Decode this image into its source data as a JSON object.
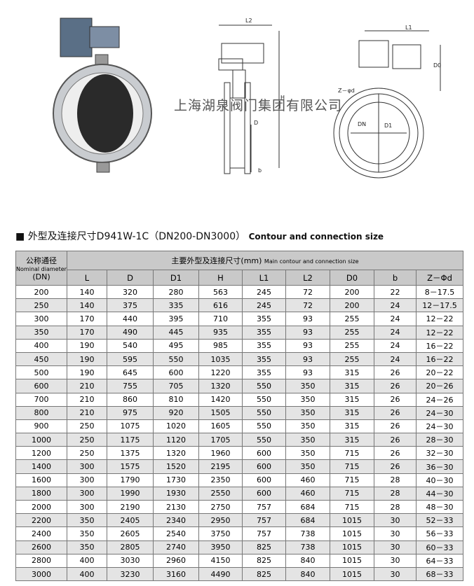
{
  "watermark": "上海湖泉阀门集团有限公司",
  "drawings": {
    "side": {
      "labels": [
        "L2",
        "H",
        "D",
        "b"
      ]
    },
    "front": {
      "labels": [
        "L1",
        "D0",
        "Z－φd",
        "DN",
        "D1"
      ]
    }
  },
  "section": {
    "title": "外型及连接尺寸D941W-1C（DN200-DN3000）",
    "title_en": "Contour and connection size"
  },
  "table": {
    "corner": [
      "公称通径",
      "Nominal diameter",
      "(DN)"
    ],
    "group_header": "主要外型及连接尺寸(mm)",
    "group_header_en": "Main contour and connection size",
    "columns": [
      "L",
      "D",
      "D1",
      "H",
      "L1",
      "L2",
      "D0",
      "b",
      "Z－Φd"
    ],
    "rows": [
      [
        "200",
        "140",
        "320",
        "280",
        "563",
        "245",
        "72",
        "200",
        "22",
        "8－17.5"
      ],
      [
        "250",
        "140",
        "375",
        "335",
        "616",
        "245",
        "72",
        "200",
        "24",
        "12－17.5"
      ],
      [
        "300",
        "170",
        "440",
        "395",
        "710",
        "355",
        "93",
        "255",
        "24",
        "12－22"
      ],
      [
        "350",
        "170",
        "490",
        "445",
        "935",
        "355",
        "93",
        "255",
        "24",
        "12－22"
      ],
      [
        "400",
        "190",
        "540",
        "495",
        "985",
        "355",
        "93",
        "255",
        "24",
        "16－22"
      ],
      [
        "450",
        "190",
        "595",
        "550",
        "1035",
        "355",
        "93",
        "255",
        "24",
        "16－22"
      ],
      [
        "500",
        "190",
        "645",
        "600",
        "1220",
        "355",
        "93",
        "315",
        "26",
        "20－22"
      ],
      [
        "600",
        "210",
        "755",
        "705",
        "1320",
        "550",
        "350",
        "315",
        "26",
        "20－26"
      ],
      [
        "700",
        "210",
        "860",
        "810",
        "1420",
        "550",
        "350",
        "315",
        "26",
        "24－26"
      ],
      [
        "800",
        "210",
        "975",
        "920",
        "1505",
        "550",
        "350",
        "315",
        "26",
        "24－30"
      ],
      [
        "900",
        "250",
        "1075",
        "1020",
        "1605",
        "550",
        "350",
        "315",
        "26",
        "24－30"
      ],
      [
        "1000",
        "250",
        "1175",
        "1120",
        "1705",
        "550",
        "350",
        "315",
        "26",
        "28－30"
      ],
      [
        "1200",
        "250",
        "1375",
        "1320",
        "1960",
        "600",
        "350",
        "715",
        "26",
        "32－30"
      ],
      [
        "1400",
        "300",
        "1575",
        "1520",
        "2195",
        "600",
        "350",
        "715",
        "26",
        "36－30"
      ],
      [
        "1600",
        "300",
        "1790",
        "1730",
        "2350",
        "600",
        "460",
        "715",
        "28",
        "40－30"
      ],
      [
        "1800",
        "300",
        "1990",
        "1930",
        "2550",
        "600",
        "460",
        "715",
        "28",
        "44－30"
      ],
      [
        "2000",
        "300",
        "2190",
        "2130",
        "2750",
        "757",
        "684",
        "715",
        "28",
        "48－30"
      ],
      [
        "2200",
        "350",
        "2405",
        "2340",
        "2950",
        "757",
        "684",
        "1015",
        "30",
        "52－33"
      ],
      [
        "2400",
        "350",
        "2605",
        "2540",
        "3750",
        "757",
        "738",
        "1015",
        "30",
        "56－33"
      ],
      [
        "2600",
        "350",
        "2805",
        "2740",
        "3950",
        "825",
        "738",
        "1015",
        "30",
        "60－33"
      ],
      [
        "2800",
        "400",
        "3030",
        "2960",
        "4150",
        "825",
        "840",
        "1015",
        "30",
        "64－33"
      ],
      [
        "3000",
        "400",
        "3230",
        "3160",
        "4490",
        "825",
        "840",
        "1015",
        "30",
        "68－33"
      ]
    ]
  }
}
